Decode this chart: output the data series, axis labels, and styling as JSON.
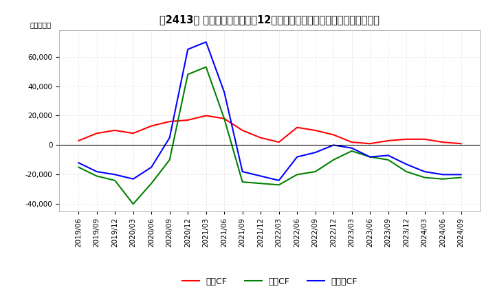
{
  "title": "　1　2413、 キャッシュフローの12か月移動合計の対前年同期増減額の推移",
  "title_text": "【2413】 キャッシュフローの12か月移動合計の対前年同期増減額の推移",
  "ylabel": "（百万円）",
  "ylim": [
    -45000,
    78000
  ],
  "yticks": [
    -40000,
    -20000,
    0,
    20000,
    40000,
    60000
  ],
  "legend_labels": [
    "営業CF",
    "投資CF",
    "フリーCF"
  ],
  "colors": {
    "eigyo": "#ff0000",
    "toshi": "#008000",
    "free": "#0000ff"
  },
  "dates": [
    "2019/06",
    "2019/09",
    "2019/12",
    "2020/03",
    "2020/06",
    "2020/09",
    "2020/12",
    "2021/03",
    "2021/06",
    "2021/09",
    "2021/12",
    "2022/03",
    "2022/06",
    "2022/09",
    "2022/12",
    "2023/03",
    "2023/06",
    "2023/09",
    "2023/12",
    "2024/03",
    "2024/06",
    "2024/09"
  ],
  "eigyo_cf": [
    3000,
    8000,
    10000,
    8000,
    13000,
    16000,
    17000,
    20000,
    18000,
    10000,
    5000,
    2000,
    12000,
    10000,
    7000,
    2000,
    1000,
    3000,
    4000,
    4000,
    2000,
    1000
  ],
  "toshi_cf": [
    -15000,
    -21000,
    -24000,
    -40000,
    -26000,
    -10000,
    48000,
    53000,
    18000,
    -25000,
    -26000,
    -27000,
    -20000,
    -18000,
    -10000,
    -4000,
    -8000,
    -10000,
    -18000,
    -22000,
    -23000,
    -22000
  ],
  "free_cf": [
    -12000,
    -18000,
    -20000,
    -23000,
    -15000,
    5000,
    65000,
    70000,
    36000,
    -18000,
    -21000,
    -24000,
    -8000,
    -5000,
    0,
    -2000,
    -8000,
    -7000,
    -13000,
    -18000,
    -20000,
    -20000
  ],
  "background_color": "#ffffff",
  "grid_color": "#cccccc",
  "title_fontsize": 10.5,
  "tick_fontsize": 7.5,
  "legend_fontsize": 9
}
